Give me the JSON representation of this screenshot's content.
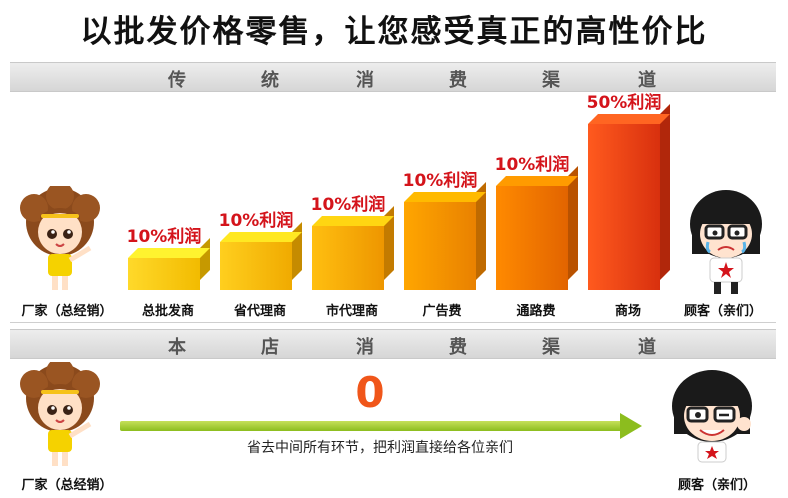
{
  "headline": "以批发价格零售，让您感受真正的高性价比",
  "traditional": {
    "band_chars": [
      "传",
      "统",
      "消",
      "费",
      "渠",
      "道"
    ],
    "nodes": [
      "厂家（总经销）",
      "总批发商",
      "省代理商",
      "市代理商",
      "广告费",
      "通路费",
      "商场",
      "顾客（亲们）"
    ],
    "margins": [
      "10%利润",
      "10%利润",
      "10%利润",
      "10%利润",
      "10%利润",
      "50%利润"
    ]
  },
  "store": {
    "band_chars": [
      "本",
      "店",
      "消",
      "费",
      "渠",
      "道"
    ],
    "zero": "0",
    "caption": "省去中间所有环节，把利润直接给各位亲们",
    "left_node": "厂家（总经销）",
    "right_node": "顾客（亲们）"
  },
  "colors": {
    "margin_text": "#d4141b",
    "zero": "#f0561a",
    "arrow": "#8cbd1e",
    "bar_yellow": "#f7c600",
    "bar_orange": "#f08a00",
    "bar_red": "#e8401a"
  },
  "icons": {
    "left_figure": "afro-girl-cartoon-icon",
    "right_figure_top": "crying-girl-glasses-icon",
    "right_figure_bottom": "winking-girl-glasses-icon"
  }
}
